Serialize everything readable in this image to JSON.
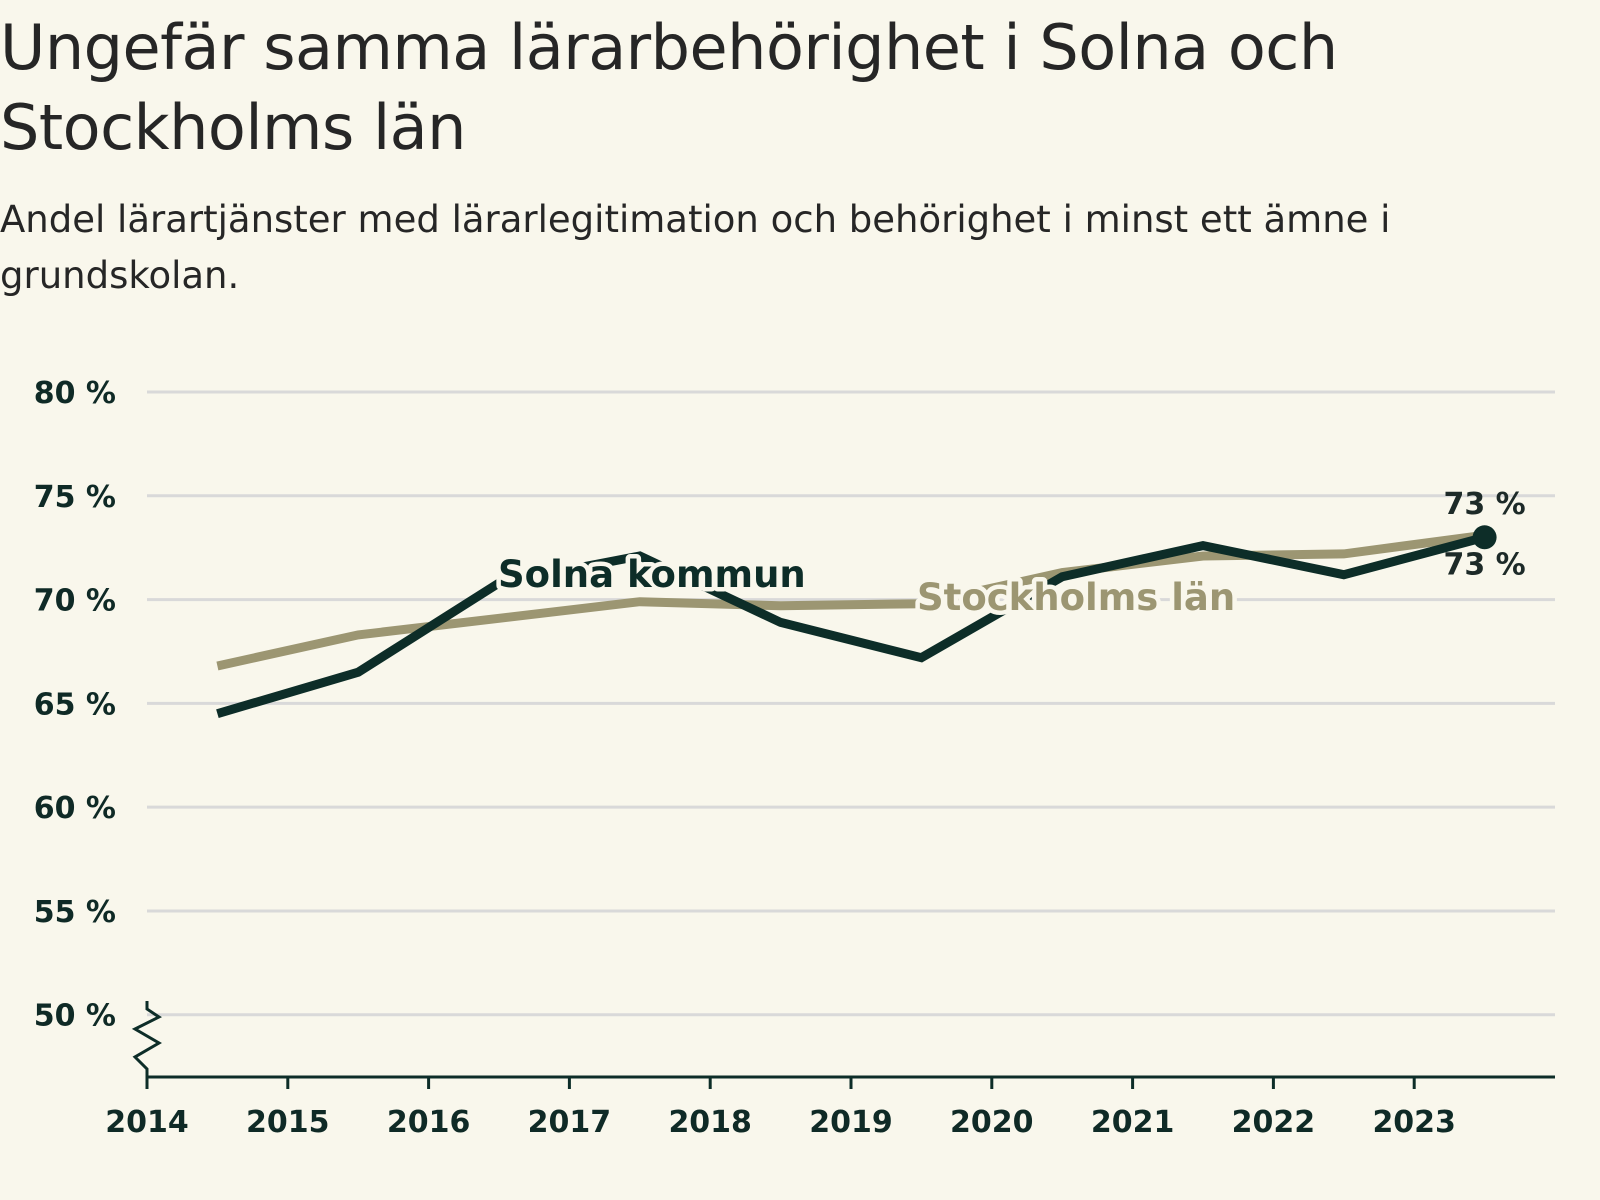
{
  "title": "Ungefär samma lärarbehörighet i Solna och Stockholms län",
  "subtitle": "Andel lärartjänster med lärarlegitimation och behörighet i minst ett ämne i grundskolan.",
  "colors": {
    "background": "#f9f7ec",
    "solna": "#0d2d28",
    "stockholm": "#9c9672",
    "grid": "#d9d9d9",
    "axis": "#0d2d28"
  },
  "chart_data": {
    "type": "line",
    "title": "Ungefär samma lärarbehörighet i Solna och Stockholms län",
    "xlabel": "",
    "ylabel": "",
    "x": [
      2014.5,
      2015.5,
      2016.5,
      2017.5,
      2018.5,
      2019.5,
      2020.5,
      2021.5,
      2022.5,
      2023.5
    ],
    "xlim": [
      2014,
      2024
    ],
    "x_ticks": [
      2014,
      2015,
      2016,
      2017,
      2018,
      2019,
      2020,
      2021,
      2022,
      2023
    ],
    "x_tick_labels": [
      "2014",
      "2015",
      "2016",
      "2017",
      "2018",
      "2019",
      "2020",
      "2021",
      "2022",
      "2023"
    ],
    "ylim": [
      47,
      80
    ],
    "y_ticks": [
      50,
      55,
      60,
      65,
      70,
      75,
      80
    ],
    "y_tick_labels": [
      "50 %",
      "55 %",
      "60 %",
      "65 %",
      "70 %",
      "75 %",
      "80 %"
    ],
    "y_axis_break": true,
    "grid": true,
    "series": [
      {
        "name": "Stockholms län",
        "values": [
          66.8,
          68.3,
          69.1,
          69.9,
          69.7,
          69.8,
          71.3,
          72.1,
          72.2,
          73.1
        ],
        "end_label": "73 %"
      },
      {
        "name": "Solna kommun",
        "values": [
          64.5,
          66.5,
          70.8,
          72.1,
          68.9,
          67.2,
          71.1,
          72.6,
          71.2,
          73.0
        ],
        "end_label": "73 %"
      }
    ]
  }
}
